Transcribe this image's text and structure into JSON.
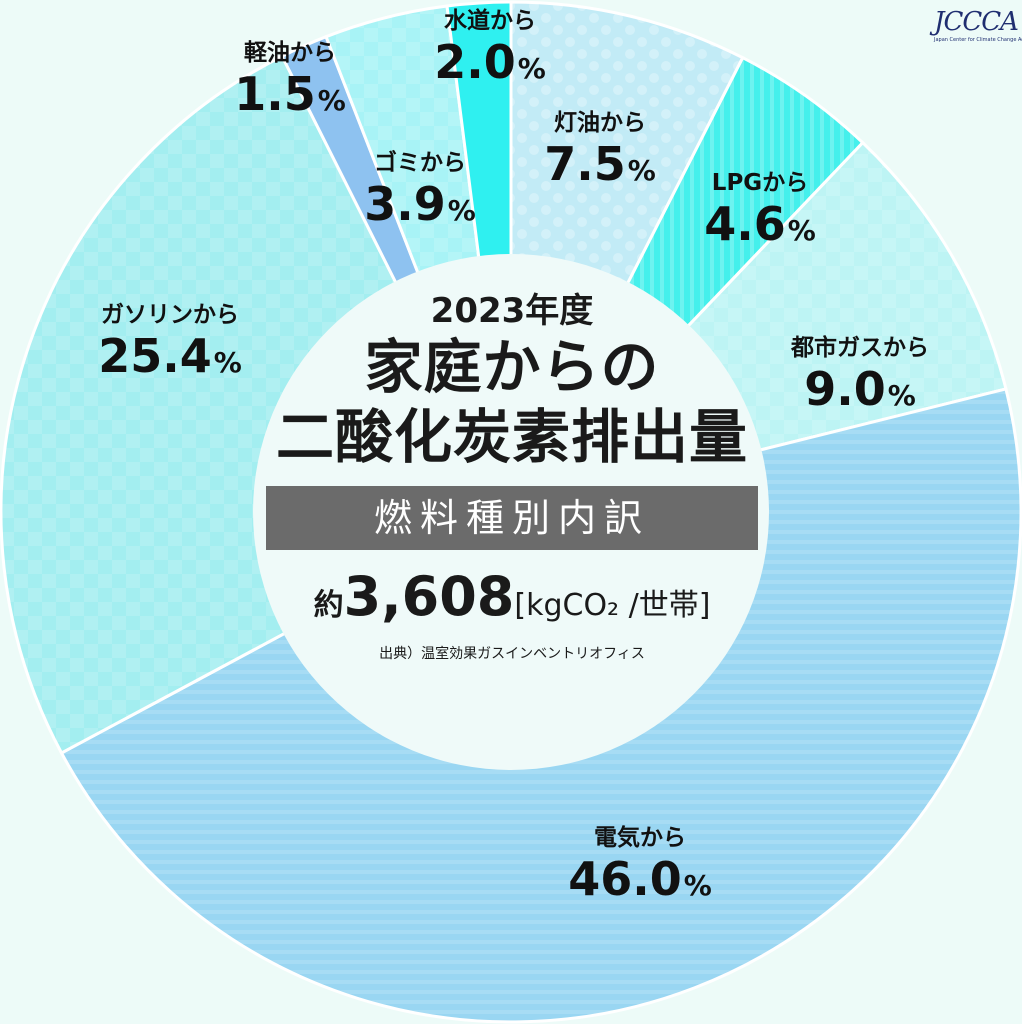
{
  "chart_data": {
    "type": "pie",
    "title": "2023年度",
    "subtitle": "家庭からの二酸化炭素排出量",
    "slices": [
      {
        "label": "灯油から",
        "value": 7.5,
        "color": "#c2ebf6"
      },
      {
        "label": "LPGから",
        "value": 4.6,
        "color": "#44f0ec"
      },
      {
        "label": "都市ガスから",
        "value": 9.0,
        "color": "#bdf4f4"
      },
      {
        "label": "電気から",
        "value": 46.0,
        "color": "#99d6f2"
      },
      {
        "label": "ガソリンから",
        "value": 25.4,
        "color": "#a3eef0"
      },
      {
        "label": "軽油から",
        "value": 1.5,
        "color": "#8ec2f0"
      },
      {
        "label": "ゴミから",
        "value": 3.9,
        "color": "#a8f3f6"
      },
      {
        "label": "水道から",
        "value": 2.0,
        "color": "#2ff0f0"
      }
    ],
    "pct_symbol": "%"
  },
  "center": {
    "year": "2023年度",
    "title_line1": "家庭からの",
    "title_line2": "二酸化炭素排出量",
    "subtitle": "燃料種別内訳",
    "total_prefix": "約",
    "total_value": "3,608",
    "total_unit": "[kgCO₂ /世帯]",
    "source": "出典）温室効果ガスインベントリオフィス"
  },
  "logo": {
    "text": "JCCCA",
    "subtext": "Japan Center for Climate Change Actions",
    "color": "#1f2e70"
  }
}
